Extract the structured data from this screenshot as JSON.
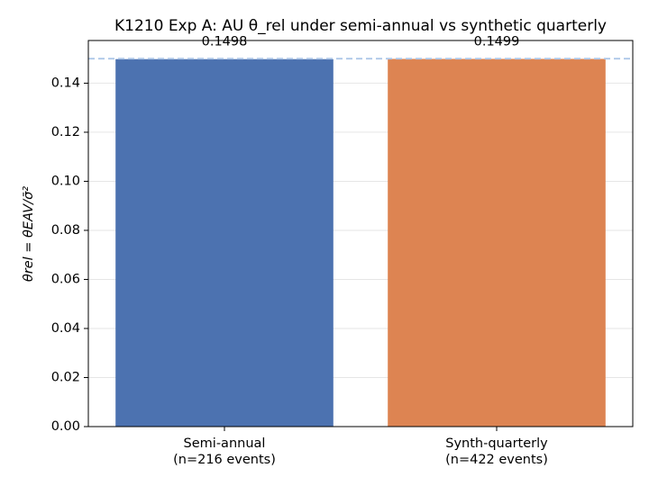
{
  "chart_data": {
    "type": "bar",
    "title": "K1210 Exp A: AU θ_rel under semi-annual vs synthetic quarterly",
    "y_label": "θrel = θEAV/σ̄²",
    "categories": [
      "Semi-annual\n(n=216 events)",
      "Synth-quarterly\n(n=422 events)"
    ],
    "values": [
      0.1498,
      0.1499
    ],
    "colors": [
      "#4c72b0",
      "#dd8452"
    ],
    "reference_line": 0.15,
    "reference_color": "#aec7e8",
    "ylim": [
      0,
      0.1574
    ],
    "yticks": [
      {
        "value": 0,
        "label": "0.00"
      },
      {
        "value": 0.02,
        "label": "0.02"
      },
      {
        "value": 0.04,
        "label": "0.04"
      },
      {
        "value": 0.06,
        "label": "0.06"
      },
      {
        "value": 0.08,
        "label": "0.08"
      },
      {
        "value": 0.1,
        "label": "0.10"
      },
      {
        "value": 0.12,
        "label": "0.12"
      },
      {
        "value": 0.14,
        "label": "0.14"
      }
    ],
    "grid": true
  }
}
